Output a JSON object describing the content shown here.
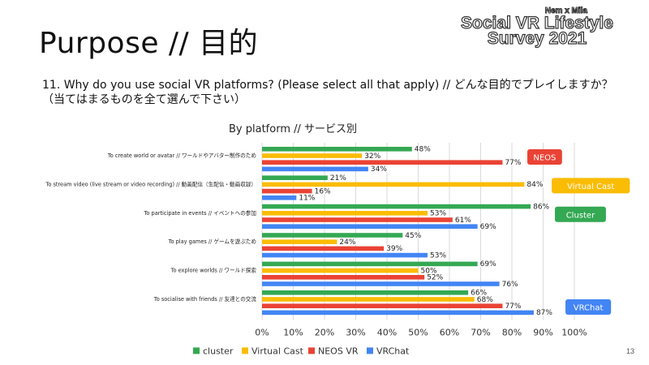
{
  "slide": {
    "title": "Purpose // 目的",
    "brand": {
      "line1": "Nem x Mila",
      "line2": "Social VR Lifestyle",
      "line3": "Survey 2021"
    },
    "question_line1": "11. Why do you use social VR platforms? (Please select all that apply) // どんな目的でプレイしますか？",
    "question_line2": "（当てはまるものを全て選んで下さい）",
    "page_number": "13"
  },
  "chart_data": {
    "type": "bar",
    "orientation": "horizontal",
    "title": "By platform // サービス別",
    "categories": [
      "To create world or avatar // ワールドやアバター制作のため",
      "To stream video (live stream or video recording) // 動画配信（生配信・動画収録）",
      "To participate in events // イベントへの参加",
      "To play games // ゲームを遊ぶため",
      "To explore worlds // ワールド探索",
      "To socialise with friends // 友達との交流"
    ],
    "series": [
      {
        "name": "cluster",
        "color": "#34a853",
        "values": [
          48,
          21,
          86,
          45,
          69,
          66
        ]
      },
      {
        "name": "Virtual Cast",
        "color": "#fbbc04",
        "values": [
          32,
          84,
          53,
          24,
          50,
          68
        ]
      },
      {
        "name": "NEOS VR",
        "color": "#ea4335",
        "values": [
          77,
          16,
          61,
          39,
          52,
          77
        ]
      },
      {
        "name": "VRChat",
        "color": "#4285f4",
        "values": [
          34,
          11,
          69,
          53,
          76,
          87
        ]
      }
    ],
    "value_labels": [
      [
        "48%",
        "32%",
        "77%",
        "34%"
      ],
      [
        "21%",
        "84%",
        "16%",
        "11%"
      ],
      [
        "86%",
        "53%",
        "61%",
        "69%"
      ],
      [
        "45%",
        "24%",
        "39%",
        "53%"
      ],
      [
        "69%",
        "50%",
        "52%",
        "76%"
      ],
      [
        "66%",
        "68%",
        "77%",
        "87%"
      ]
    ],
    "callouts": [
      {
        "text": "NEOS",
        "category_index": 0,
        "color": "#ea4335"
      },
      {
        "text": "Virtual Cast",
        "category_index": 1,
        "color": "#fbbc04"
      },
      {
        "text": "Cluster",
        "category_index": 2,
        "color": "#34a853"
      },
      {
        "text": "VRChat",
        "category_index": 5,
        "color": "#4285f4"
      }
    ],
    "x_ticks": [
      "0%",
      "10%",
      "20%",
      "30%",
      "40%",
      "50%",
      "60%",
      "70%",
      "80%",
      "90%",
      "100%"
    ],
    "xlim": [
      0,
      100
    ],
    "grid": true,
    "legend_position": "bottom"
  }
}
